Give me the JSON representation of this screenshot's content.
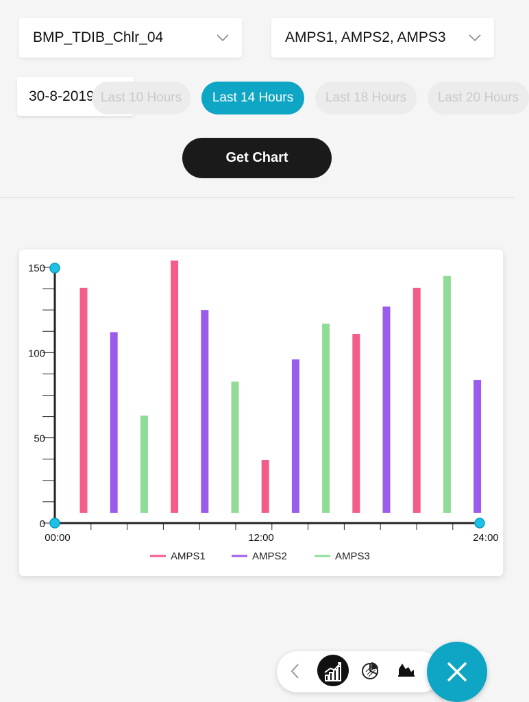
{
  "filters": {
    "device_label": "BMP_TDIB_Chlr_04",
    "series_label": "AMPS1, AMPS2, AMPS3",
    "date": "30-8-2019"
  },
  "time_ranges": [
    {
      "label": "Last 10 Hours",
      "active": false
    },
    {
      "label": "Last 14 Hours",
      "active": true
    },
    {
      "label": "Last 18 Hours",
      "active": false
    },
    {
      "label": "Last 20 Hours",
      "active": false
    }
  ],
  "actions": {
    "get_chart": "Get Chart"
  },
  "colors": {
    "accent": "#0fa5c4",
    "amps1": "#f45d87",
    "amps2": "#9a5cea",
    "amps3": "#8fdc97"
  },
  "chart_data": {
    "type": "bar",
    "ylim": [
      0,
      150
    ],
    "y_ticks": [
      0,
      50,
      100,
      150
    ],
    "y_tick_labels": [
      "0",
      "50",
      "100",
      "150"
    ],
    "x_tick_labels": [
      "00:00",
      "12:00",
      "24:00"
    ],
    "series": [
      {
        "name": "AMPS1",
        "color": "#f45d87"
      },
      {
        "name": "AMPS2",
        "color": "#9a5cea"
      },
      {
        "name": "AMPS3",
        "color": "#8fdc97"
      }
    ],
    "bars": [
      {
        "series": 0,
        "value": 138
      },
      {
        "series": 1,
        "value": 112
      },
      {
        "series": 2,
        "value": 63
      },
      {
        "series": 0,
        "value": 154
      },
      {
        "series": 1,
        "value": 125
      },
      {
        "series": 2,
        "value": 83
      },
      {
        "series": 0,
        "value": 37
      },
      {
        "series": 1,
        "value": 96
      },
      {
        "series": 2,
        "value": 117
      },
      {
        "series": 0,
        "value": 111
      },
      {
        "series": 1,
        "value": 127
      },
      {
        "series": 0,
        "value": 138
      },
      {
        "series": 2,
        "value": 145
      },
      {
        "series": 1,
        "value": 84
      }
    ],
    "legend_position": "bottom-center"
  }
}
